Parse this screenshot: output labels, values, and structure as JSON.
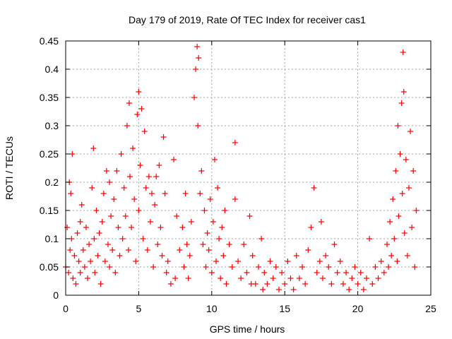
{
  "chart_data": {
    "type": "scatter",
    "title": "Day 179 of 2019, Rate Of TEC Index for receiver cas1",
    "xlabel": "GPS time / hours",
    "ylabel": "ROTI / TECUs",
    "xlim": [
      0,
      25
    ],
    "ylim": [
      0,
      0.45
    ],
    "x_ticks": [
      0,
      5,
      10,
      15,
      20,
      25
    ],
    "y_ticks": [
      0,
      0.05,
      0.1,
      0.15,
      0.2,
      0.25,
      0.3,
      0.35,
      0.4,
      0.45
    ],
    "grid": true,
    "marker": "+",
    "colors": {
      "points": "#ff0000",
      "grid": "#a0a0a0",
      "axis": "#000000"
    },
    "series": [
      {
        "name": "cas1",
        "points": [
          [
            0.0,
            0.05
          ],
          [
            0.1,
            0.12
          ],
          [
            0.2,
            0.04
          ],
          [
            0.25,
            0.2
          ],
          [
            0.3,
            0.08
          ],
          [
            0.35,
            0.18
          ],
          [
            0.4,
            0.1
          ],
          [
            0.45,
            0.25
          ],
          [
            0.5,
            0.03
          ],
          [
            0.6,
            0.07
          ],
          [
            0.7,
            0.02
          ],
          [
            0.8,
            0.11
          ],
          [
            0.9,
            0.06
          ],
          [
            1.0,
            0.13
          ],
          [
            1.0,
            0.04
          ],
          [
            1.1,
            0.16
          ],
          [
            1.2,
            0.08
          ],
          [
            1.3,
            0.05
          ],
          [
            1.4,
            0.12
          ],
          [
            1.5,
            0.03
          ],
          [
            1.6,
            0.09
          ],
          [
            1.7,
            0.06
          ],
          [
            1.8,
            0.19
          ],
          [
            1.9,
            0.26
          ],
          [
            1.95,
            0.1
          ],
          [
            2.0,
            0.04
          ],
          [
            2.1,
            0.15
          ],
          [
            2.2,
            0.07
          ],
          [
            2.3,
            0.11
          ],
          [
            2.4,
            0.02
          ],
          [
            2.5,
            0.13
          ],
          [
            2.6,
            0.18
          ],
          [
            2.7,
            0.06
          ],
          [
            2.8,
            0.22
          ],
          [
            2.9,
            0.09
          ],
          [
            3.0,
            0.2
          ],
          [
            3.0,
            0.05
          ],
          [
            3.1,
            0.14
          ],
          [
            3.2,
            0.08
          ],
          [
            3.3,
            0.17
          ],
          [
            3.4,
            0.04
          ],
          [
            3.5,
            0.22
          ],
          [
            3.6,
            0.12
          ],
          [
            3.7,
            0.07
          ],
          [
            3.8,
            0.25
          ],
          [
            3.9,
            0.1
          ],
          [
            4.0,
            0.19
          ],
          [
            4.1,
            0.14
          ],
          [
            4.2,
            0.3
          ],
          [
            4.3,
            0.08
          ],
          [
            4.35,
            0.34
          ],
          [
            4.4,
            0.21
          ],
          [
            4.5,
            0.12
          ],
          [
            4.6,
            0.26
          ],
          [
            4.7,
            0.17
          ],
          [
            4.8,
            0.06
          ],
          [
            4.9,
            0.32
          ],
          [
            5.0,
            0.36
          ],
          [
            5.0,
            0.15
          ],
          [
            5.1,
            0.23
          ],
          [
            5.2,
            0.33
          ],
          [
            5.3,
            0.1
          ],
          [
            5.4,
            0.29
          ],
          [
            5.5,
            0.19
          ],
          [
            5.6,
            0.08
          ],
          [
            5.7,
            0.21
          ],
          [
            5.8,
            0.13
          ],
          [
            5.9,
            0.18
          ],
          [
            6.0,
            0.05
          ],
          [
            6.1,
            0.16
          ],
          [
            6.2,
            0.21
          ],
          [
            6.3,
            0.09
          ],
          [
            6.4,
            0.23
          ],
          [
            6.5,
            0.12
          ],
          [
            6.6,
            0.07
          ],
          [
            6.7,
            0.28
          ],
          [
            6.8,
            0.18
          ],
          [
            6.9,
            0.04
          ],
          [
            7.0,
            0.06
          ],
          [
            7.2,
            0.02
          ],
          [
            7.4,
            0.24
          ],
          [
            7.5,
            0.03
          ],
          [
            7.6,
            0.14
          ],
          [
            7.8,
            0.08
          ],
          [
            8.0,
            0.12
          ],
          [
            8.1,
            0.05
          ],
          [
            8.2,
            0.18
          ],
          [
            8.3,
            0.09
          ],
          [
            8.4,
            0.03
          ],
          [
            8.5,
            0.07
          ],
          [
            8.6,
            0.13
          ],
          [
            8.8,
            0.35
          ],
          [
            8.9,
            0.4
          ],
          [
            9.0,
            0.44
          ],
          [
            9.05,
            0.3
          ],
          [
            9.1,
            0.42
          ],
          [
            9.2,
            0.18
          ],
          [
            9.3,
            0.22
          ],
          [
            9.4,
            0.09
          ],
          [
            9.5,
            0.15
          ],
          [
            9.6,
            0.05
          ],
          [
            9.7,
            0.11
          ],
          [
            9.8,
            0.08
          ],
          [
            9.9,
            0.17
          ],
          [
            10.0,
            0.04
          ],
          [
            10.1,
            0.13
          ],
          [
            10.2,
            0.24
          ],
          [
            10.3,
            0.06
          ],
          [
            10.4,
            0.19
          ],
          [
            10.5,
            0.1
          ],
          [
            10.6,
            0.03
          ],
          [
            10.7,
            0.12
          ],
          [
            10.8,
            0.07
          ],
          [
            10.9,
            0.15
          ],
          [
            11.0,
            0.02
          ],
          [
            11.2,
            0.09
          ],
          [
            11.4,
            0.05
          ],
          [
            11.6,
            0.27
          ],
          [
            11.6,
            0.17
          ],
          [
            11.8,
            0.06
          ],
          [
            12.0,
            0.03
          ],
          [
            12.2,
            0.09
          ],
          [
            12.4,
            0.04
          ],
          [
            12.6,
            0.14
          ],
          [
            12.7,
            0.02
          ],
          [
            12.8,
            0.07
          ],
          [
            13.0,
            0.02
          ],
          [
            13.2,
            0.05
          ],
          [
            13.4,
            0.1
          ],
          [
            13.5,
            0.01
          ],
          [
            13.6,
            0.04
          ],
          [
            13.8,
            0.02
          ],
          [
            14.0,
            0.06
          ],
          [
            14.2,
            0.03
          ],
          [
            14.4,
            0.05
          ],
          [
            14.6,
            0.01
          ],
          [
            14.8,
            0.04
          ],
          [
            15.0,
            0.02
          ],
          [
            15.2,
            0.06
          ],
          [
            15.4,
            0.03
          ],
          [
            15.6,
            0.01
          ],
          [
            15.8,
            0.07
          ],
          [
            16.0,
            0.03
          ],
          [
            16.2,
            0.05
          ],
          [
            16.4,
            0.02
          ],
          [
            16.6,
            0.08
          ],
          [
            16.8,
            0.12
          ],
          [
            17.0,
            0.19
          ],
          [
            17.2,
            0.04
          ],
          [
            17.4,
            0.06
          ],
          [
            17.5,
            0.13
          ],
          [
            17.6,
            0.03
          ],
          [
            17.8,
            0.07
          ],
          [
            18.0,
            0.05
          ],
          [
            18.2,
            0.02
          ],
          [
            18.4,
            0.09
          ],
          [
            18.6,
            0.04
          ],
          [
            18.8,
            0.06
          ],
          [
            19.0,
            0.02
          ],
          [
            19.2,
            0.04
          ],
          [
            19.4,
            0.01
          ],
          [
            19.6,
            0.03
          ],
          [
            19.8,
            0.05
          ],
          [
            20.0,
            0.02
          ],
          [
            20.2,
            0.04
          ],
          [
            20.4,
            0.01
          ],
          [
            20.6,
            0.03
          ],
          [
            20.8,
            0.1
          ],
          [
            21.0,
            0.02
          ],
          [
            21.2,
            0.05
          ],
          [
            21.4,
            0.03
          ],
          [
            21.6,
            0.06
          ],
          [
            21.8,
            0.04
          ],
          [
            22.0,
            0.09
          ],
          [
            22.1,
            0.05
          ],
          [
            22.2,
            0.13
          ],
          [
            22.3,
            0.07
          ],
          [
            22.4,
            0.17
          ],
          [
            22.5,
            0.1
          ],
          [
            22.6,
            0.22
          ],
          [
            22.7,
            0.06
          ],
          [
            22.75,
            0.3
          ],
          [
            22.8,
            0.14
          ],
          [
            22.9,
            0.25
          ],
          [
            23.0,
            0.34
          ],
          [
            23.05,
            0.18
          ],
          [
            23.1,
            0.43
          ],
          [
            23.15,
            0.36
          ],
          [
            23.2,
            0.11
          ],
          [
            23.3,
            0.24
          ],
          [
            23.4,
            0.07
          ],
          [
            23.5,
            0.19
          ],
          [
            23.6,
            0.29
          ],
          [
            23.7,
            0.12
          ],
          [
            23.8,
            0.22
          ],
          [
            23.9,
            0.05
          ],
          [
            24.0,
            0.15
          ]
        ]
      }
    ]
  }
}
